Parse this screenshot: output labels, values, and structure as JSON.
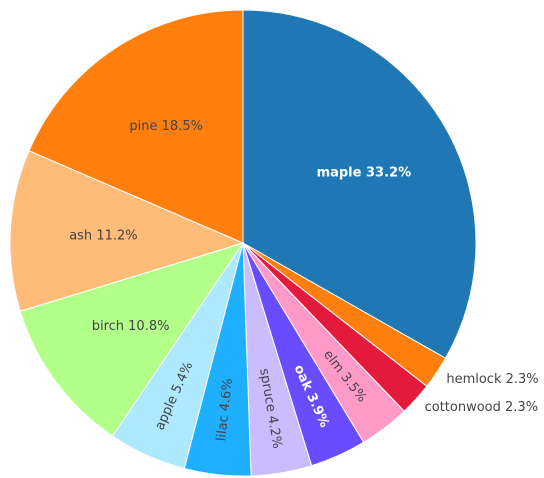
{
  "chart_data": {
    "type": "pie",
    "labels": [
      "maple",
      "hemlock",
      "cottonwood",
      "elm",
      "oak",
      "spruce",
      "lilac",
      "apple",
      "birch",
      "ash",
      "pine"
    ],
    "values": [
      33.2,
      2.3,
      2.3,
      3.5,
      3.9,
      4.2,
      4.6,
      5.4,
      10.8,
      11.2,
      18.5
    ],
    "value_labels": [
      "33.2%",
      "2.3%",
      "2.3%",
      "3.5%",
      "3.9%",
      "4.2%",
      "4.6%",
      "5.4%",
      "10.8%",
      "11.2%",
      "18.5%"
    ],
    "colors": [
      "#1f77b4",
      "#ff7f0e",
      "#e31a3c",
      "#ff99c8",
      "#6a4cff",
      "#cbbcff",
      "#1eb0ff",
      "#aee9ff",
      "#b2ff8a",
      "#ffbb78",
      "#ff7f0e"
    ]
  }
}
